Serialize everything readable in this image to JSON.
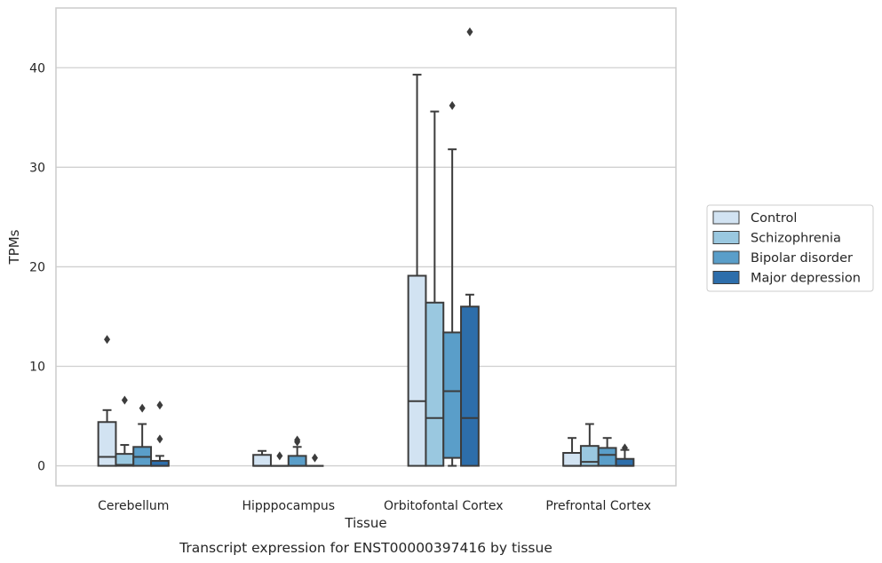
{
  "chart_data": {
    "type": "box",
    "caption": "Transcript expression for ENST00000397416 by tissue",
    "xlabel": "Tissue",
    "ylabel": "TPMs",
    "ylim": [
      -2,
      46
    ],
    "yticks": [
      0,
      10,
      20,
      30,
      40
    ],
    "grid": true,
    "legend_position": "right",
    "categories": [
      "Cerebellum",
      "Hipppocampus",
      "Orbitofontal Cortex",
      "Prefrontal Cortex"
    ],
    "series": [
      {
        "name": "Control",
        "color": "#d2e3f2",
        "boxes": [
          {
            "q1": 0,
            "median": 0.9,
            "q3": 4.4,
            "whisker_low": 0,
            "whisker_high": 5.6,
            "outliers": [
              12.7
            ]
          },
          {
            "q1": 0,
            "median": 0,
            "q3": 1.1,
            "whisker_low": 0,
            "whisker_high": 1.5,
            "outliers": []
          },
          {
            "q1": 0,
            "median": 6.5,
            "q3": 19.1,
            "whisker_low": 0,
            "whisker_high": 39.3,
            "outliers": []
          },
          {
            "q1": 0,
            "median": 0,
            "q3": 1.3,
            "whisker_low": 0,
            "whisker_high": 2.8,
            "outliers": []
          }
        ]
      },
      {
        "name": "Schizophrenia",
        "color": "#9ac8e0",
        "boxes": [
          {
            "q1": 0,
            "median": 0.1,
            "q3": 1.2,
            "whisker_low": 0,
            "whisker_high": 2.1,
            "outliers": [
              6.6
            ]
          },
          {
            "q1": 0,
            "median": 0,
            "q3": 0,
            "whisker_low": 0,
            "whisker_high": 0,
            "outliers": [
              1.0
            ]
          },
          {
            "q1": 0,
            "median": 4.8,
            "q3": 16.4,
            "whisker_low": 0,
            "whisker_high": 35.6,
            "outliers": []
          },
          {
            "q1": 0,
            "median": 0.4,
            "q3": 2.0,
            "whisker_low": 0,
            "whisker_high": 4.2,
            "outliers": []
          }
        ]
      },
      {
        "name": "Bipolar disorder",
        "color": "#5a9ec9",
        "boxes": [
          {
            "q1": 0,
            "median": 0.9,
            "q3": 1.9,
            "whisker_low": 0,
            "whisker_high": 4.2,
            "outliers": [
              5.8
            ]
          },
          {
            "q1": 0,
            "median": 0,
            "q3": 1.0,
            "whisker_low": 0,
            "whisker_high": 1.9,
            "outliers": [
              2.4,
              2.6
            ]
          },
          {
            "q1": 0.8,
            "median": 7.5,
            "q3": 13.4,
            "whisker_low": 0,
            "whisker_high": 31.8,
            "outliers": [
              36.2
            ]
          },
          {
            "q1": 0,
            "median": 1.1,
            "q3": 1.8,
            "whisker_low": 0,
            "whisker_high": 2.8,
            "outliers": []
          }
        ]
      },
      {
        "name": "Major depression",
        "color": "#2d6eab",
        "boxes": [
          {
            "q1": 0,
            "median": 0,
            "q3": 0.5,
            "whisker_low": 0,
            "whisker_high": 1.0,
            "outliers": [
              2.7,
              6.1
            ]
          },
          {
            "q1": 0,
            "median": 0,
            "q3": 0,
            "whisker_low": 0,
            "whisker_high": 0,
            "outliers": [
              0.8
            ]
          },
          {
            "q1": 0,
            "median": 4.8,
            "q3": 16.0,
            "whisker_low": 0,
            "whisker_high": 17.2,
            "outliers": [
              43.6
            ]
          },
          {
            "q1": 0,
            "median": 0,
            "q3": 0.7,
            "whisker_low": 0,
            "whisker_high": 1.6,
            "outliers": [
              1.8
            ]
          }
        ]
      }
    ]
  }
}
